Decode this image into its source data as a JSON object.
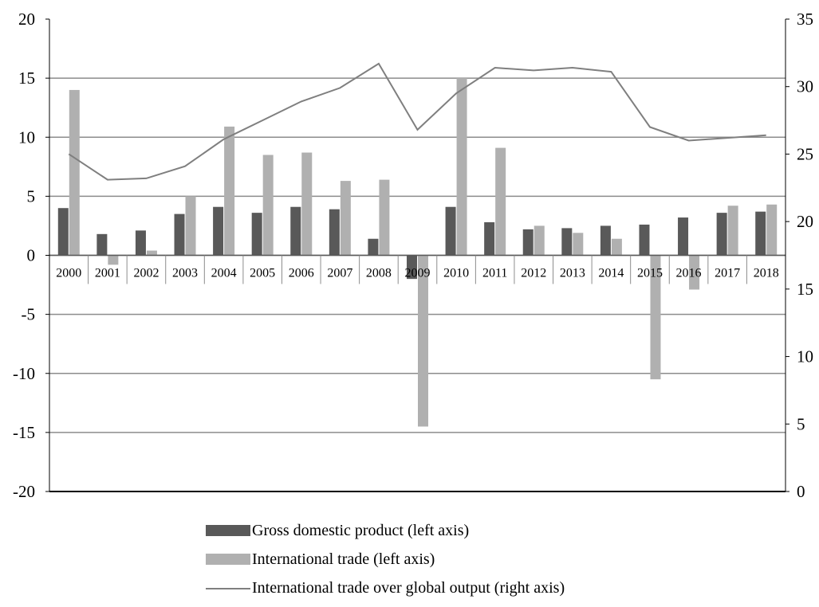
{
  "chart_data": {
    "type": "bar",
    "categories": [
      "2000",
      "2001",
      "2002",
      "2003",
      "2004",
      "2005",
      "2006",
      "2007",
      "2008",
      "2009",
      "2010",
      "2011",
      "2012",
      "2013",
      "2014",
      "2015",
      "2016",
      "2017",
      "2018"
    ],
    "series": [
      {
        "name": "Gross domestic product (left axis)",
        "type": "bar",
        "axis": "left",
        "color": "#595959",
        "values": [
          4.0,
          1.8,
          2.1,
          3.5,
          4.1,
          3.6,
          4.1,
          3.9,
          1.4,
          -2.0,
          4.1,
          2.8,
          2.2,
          2.3,
          2.5,
          2.6,
          3.2,
          3.6,
          3.7
        ]
      },
      {
        "name": "International trade (left axis)",
        "type": "bar",
        "axis": "left",
        "color": "#b0b0b0",
        "values": [
          14.0,
          -0.8,
          0.4,
          5.0,
          10.9,
          8.5,
          8.7,
          6.3,
          6.4,
          -14.5,
          15.0,
          9.1,
          2.5,
          1.9,
          1.4,
          -10.5,
          -2.9,
          4.2,
          4.3
        ]
      },
      {
        "name": "International trade over global output (right axis)",
        "type": "line",
        "axis": "right",
        "color": "#7f7f7f",
        "values": [
          25.0,
          23.1,
          23.2,
          24.1,
          26.1,
          27.5,
          28.9,
          29.9,
          31.7,
          26.8,
          29.5,
          31.4,
          31.2,
          31.4,
          31.1,
          27.0,
          26.0,
          26.2,
          26.4
        ]
      }
    ],
    "left_axis": {
      "min": -20,
      "max": 20,
      "ticks": [
        "20",
        "15",
        "10",
        "5",
        "0",
        "-5",
        "-10",
        "-15",
        "-20"
      ]
    },
    "right_axis": {
      "min": 0,
      "max": 35,
      "ticks": [
        "35",
        "30",
        "25",
        "20",
        "15",
        "10",
        "5",
        "0"
      ]
    },
    "gridlines": true,
    "legend_position": "bottom"
  },
  "legend": {
    "gdp": "Gross domestic product (left axis)",
    "trade": "International trade (left axis)",
    "ratio": "International trade over global output (right axis)"
  }
}
